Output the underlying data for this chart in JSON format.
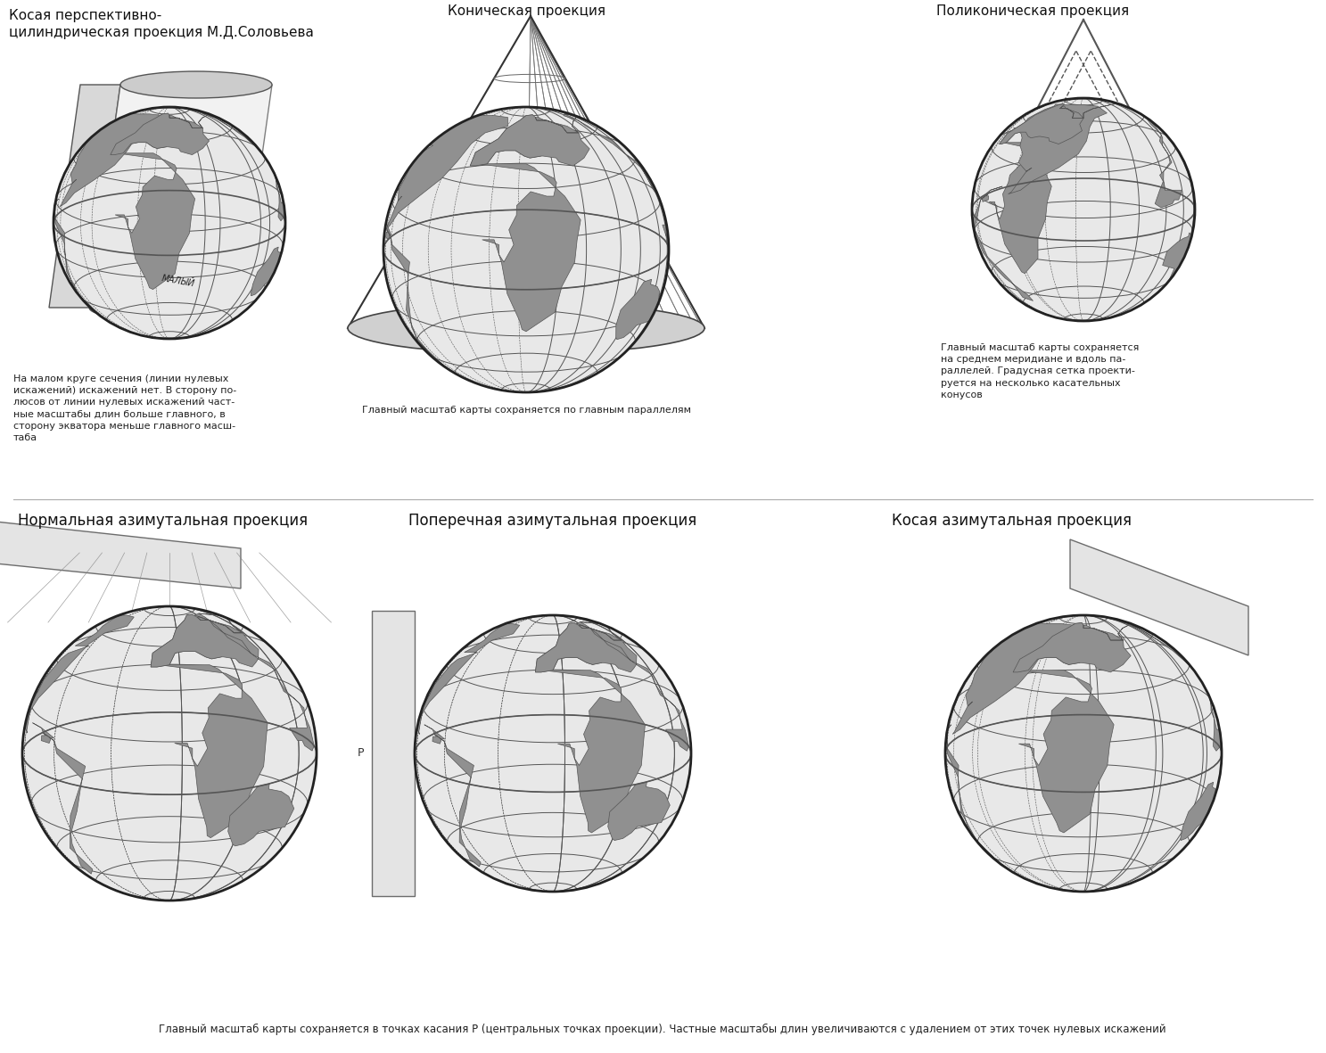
{
  "background_color": "#ffffff",
  "fig_width": 14.87,
  "fig_height": 11.81,
  "dpi": 100,
  "titles": {
    "top_left": "Косая перспективно-\nцилиндрическая проекция М.Д.Соловьева",
    "top_center": "Коническая проекция",
    "top_right": "Поликоническая проекция",
    "bottom_left": "Нормальная азимутальная проекция",
    "bottom_center": "Поперечная азимутальная проекция",
    "bottom_right": "Косая азимутальная проекция"
  },
  "captions": {
    "top_left": "На малом круге сечения (линии нулевых\nискажений) искажений нет. В сторону по-\nлюсов от линии нулевых искажений част-\nные масштабы длин больше главного, в\nсторону экватора меньше главного масш-\nтаба",
    "top_center": "Главный масштаб карты сохраняется по главным параллелям",
    "top_right": "Главный масштаб карты сохраняется\nна среднем меридиане и вдоль па-\nраллелей. Градусная сетка проекти-\nруется на несколько касательных\nконусов",
    "bottom_all": "Главный масштаб карты сохраняется в точках касания P (центральных точках проекции). Частные масштабы длин увеличиваются с удалением от этих точек нулевых искажений"
  },
  "title_fontsize": 11,
  "caption_fontsize": 8,
  "globe_color": "#c8c8c8",
  "globe_edge_color": "#333333",
  "grid_color": "#555555",
  "land_color": "#888888"
}
